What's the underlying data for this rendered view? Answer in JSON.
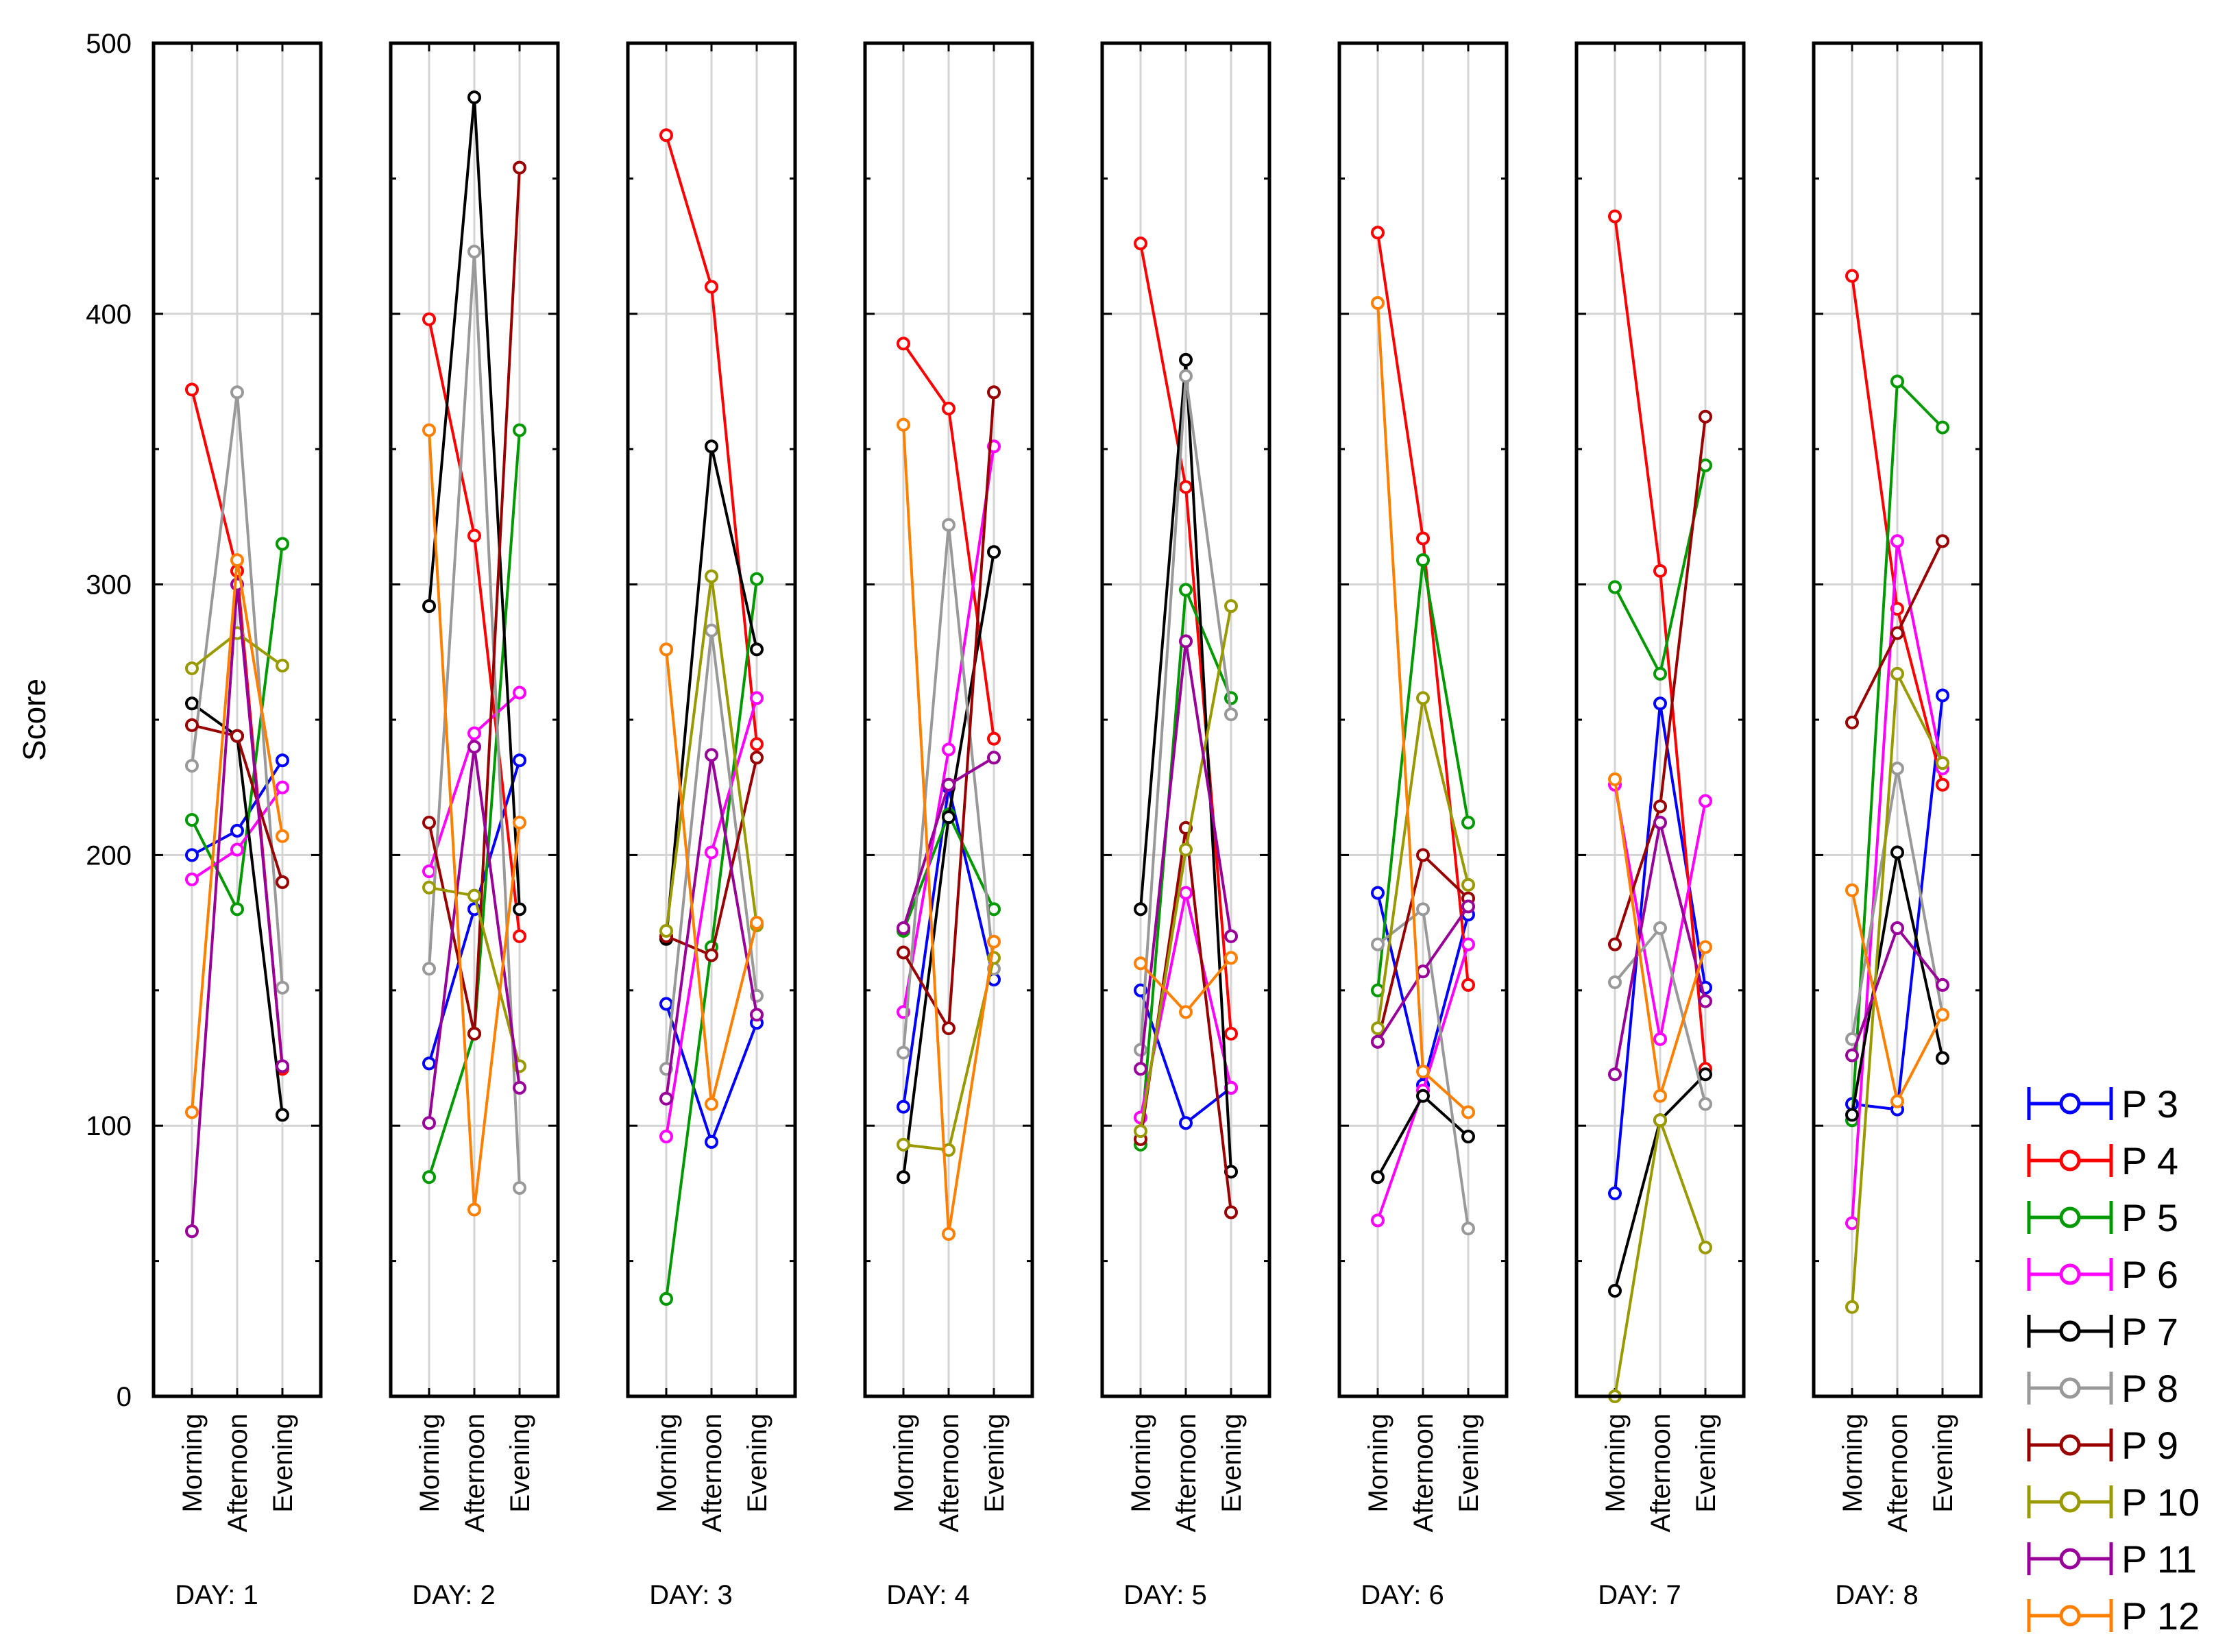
{
  "chart_data": {
    "type": "line",
    "ylabel": "Score",
    "ylim": [
      0,
      500
    ],
    "yticks": [
      "0",
      "100",
      "200",
      "300",
      "400",
      "500"
    ],
    "times": [
      "Morning",
      "Afternoon",
      "Evening"
    ],
    "days": [
      {
        "label": "DAY: 1",
        "series": {
          "P 3": [
            200,
            209,
            235
          ],
          "P 4": [
            372,
            305,
            121
          ],
          "P 5": [
            213,
            180,
            315
          ],
          "P 6": [
            191,
            202,
            225
          ],
          "P 7": [
            256,
            244,
            104
          ],
          "P 8": [
            233,
            371,
            151
          ],
          "P 9": [
            248,
            244,
            190
          ],
          "P 10": [
            269,
            282,
            270
          ],
          "P 11": [
            61,
            300,
            122
          ],
          "P 12": [
            105,
            309,
            207
          ]
        }
      },
      {
        "label": "DAY: 2",
        "series": {
          "P 3": [
            123,
            180,
            235
          ],
          "P 4": [
            398,
            318,
            170
          ],
          "P 5": [
            81,
            134,
            357
          ],
          "P 6": [
            194,
            245,
            260
          ],
          "P 7": [
            292,
            480,
            180
          ],
          "P 8": [
            158,
            423,
            77
          ],
          "P 9": [
            212,
            134,
            454
          ],
          "P 10": [
            188,
            185,
            122
          ],
          "P 11": [
            101,
            240,
            114
          ],
          "P 12": [
            357,
            69,
            212
          ]
        }
      },
      {
        "label": "DAY: 3",
        "series": {
          "P 3": [
            145,
            94,
            138
          ],
          "P 4": [
            466,
            410,
            241
          ],
          "P 5": [
            36,
            166,
            302
          ],
          "P 6": [
            96,
            201,
            258
          ],
          "P 7": [
            169,
            351,
            276
          ],
          "P 8": [
            121,
            283,
            148
          ],
          "P 9": [
            170,
            163,
            236
          ],
          "P 10": [
            172,
            303,
            174
          ],
          "P 11": [
            110,
            237,
            141
          ],
          "P 12": [
            276,
            108,
            175
          ]
        }
      },
      {
        "label": "DAY: 4",
        "series": {
          "P 3": [
            107,
            225,
            154
          ],
          "P 4": [
            389,
            365,
            243
          ],
          "P 5": [
            172,
            215,
            180
          ],
          "P 6": [
            142,
            239,
            351
          ],
          "P 7": [
            81,
            214,
            312
          ],
          "P 8": [
            127,
            322,
            158
          ],
          "P 9": [
            164,
            136,
            371
          ],
          "P 10": [
            93,
            91,
            162
          ],
          "P 11": [
            173,
            226,
            236
          ],
          "P 12": [
            359,
            60,
            168
          ]
        }
      },
      {
        "label": "DAY: 5",
        "series": {
          "P 3": [
            150,
            101,
            114
          ],
          "P 4": [
            426,
            336,
            134
          ],
          "P 5": [
            93,
            298,
            258
          ],
          "P 6": [
            103,
            186,
            114
          ],
          "P 7": [
            180,
            383,
            83
          ],
          "P 8": [
            128,
            377,
            252
          ],
          "P 9": [
            95,
            210,
            68
          ],
          "P 10": [
            98,
            202,
            292
          ],
          "P 11": [
            121,
            279,
            170
          ],
          "P 12": [
            160,
            142,
            162
          ]
        }
      },
      {
        "label": "DAY: 6",
        "series": {
          "P 3": [
            186,
            115,
            178
          ],
          "P 4": [
            430,
            317,
            152
          ],
          "P 5": [
            150,
            309,
            212
          ],
          "P 6": [
            65,
            113,
            167
          ],
          "P 7": [
            81,
            111,
            96
          ],
          "P 8": [
            167,
            180,
            62
          ],
          "P 9": [
            131,
            200,
            184
          ],
          "P 10": [
            136,
            258,
            189
          ],
          "P 11": [
            131,
            157,
            181
          ],
          "P 12": [
            404,
            120,
            105
          ]
        }
      },
      {
        "label": "DAY: 7",
        "series": {
          "P 3": [
            75,
            256,
            151
          ],
          "P 4": [
            436,
            305,
            121
          ],
          "P 5": [
            299,
            267,
            344
          ],
          "P 6": [
            226,
            132,
            220
          ],
          "P 7": [
            39,
            102,
            119
          ],
          "P 8": [
            153,
            173,
            108
          ],
          "P 9": [
            167,
            218,
            362
          ],
          "P 10": [
            0,
            102,
            55
          ],
          "P 11": [
            119,
            212,
            146
          ],
          "P 12": [
            228,
            111,
            166
          ]
        }
      },
      {
        "label": "DAY: 8",
        "series": {
          "P 3": [
            108,
            106,
            259
          ],
          "P 4": [
            414,
            291,
            226
          ],
          "P 5": [
            102,
            375,
            358
          ],
          "P 6": [
            64,
            316,
            232
          ],
          "P 7": [
            104,
            201,
            125
          ],
          "P 8": [
            132,
            232,
            141
          ],
          "P 9": [
            249,
            282,
            316
          ],
          "P 10": [
            33,
            267,
            234
          ],
          "P 11": [
            126,
            173,
            152
          ],
          "P 12": [
            187,
            109,
            141
          ]
        }
      }
    ],
    "legend": [
      {
        "name": "P 3",
        "color": "#0000ff"
      },
      {
        "name": "P 4",
        "color": "#ff0000"
      },
      {
        "name": "P 5",
        "color": "#009900"
      },
      {
        "name": "P 6",
        "color": "#ff00ff"
      },
      {
        "name": "P 7",
        "color": "#000000"
      },
      {
        "name": "P 8",
        "color": "#999999"
      },
      {
        "name": "P 9",
        "color": "#990000"
      },
      {
        "name": "P 10",
        "color": "#999900"
      },
      {
        "name": "P 11",
        "color": "#990099"
      },
      {
        "name": "P 12",
        "color": "#ff8000"
      }
    ],
    "legend_position": "bottom-right"
  }
}
